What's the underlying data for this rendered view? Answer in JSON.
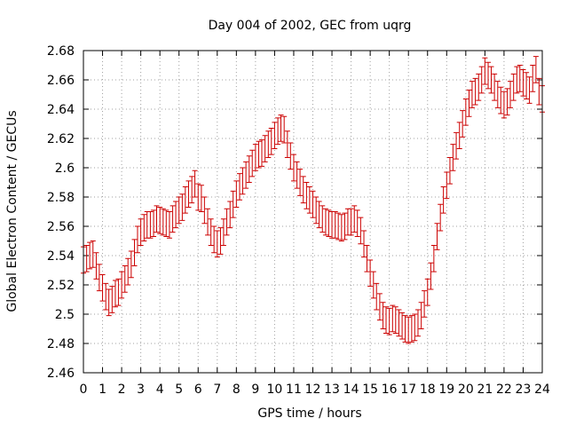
{
  "chart_data": {
    "type": "scatter",
    "title": "Day 004 of 2002, GEC from uqrg",
    "xlabel": "GPS time / hours",
    "ylabel": "Global Electron Content / GECUs",
    "xlim": [
      0,
      24
    ],
    "ylim": [
      2.46,
      2.68
    ],
    "xticks": [
      "0",
      "1",
      "2",
      "3",
      "4",
      "5",
      "6",
      "7",
      "8",
      "9",
      "10",
      "11",
      "12",
      "13",
      "14",
      "15",
      "16",
      "17",
      "18",
      "19",
      "20",
      "21",
      "22",
      "23",
      "24"
    ],
    "yticks": [
      "2.46",
      "2.48",
      "2.5",
      "2.52",
      "2.54",
      "2.56",
      "2.58",
      "2.6",
      "2.62",
      "2.64",
      "2.66",
      "2.68"
    ],
    "grid": true,
    "legend": "none",
    "errorbar_color": "#cc0000",
    "error_halfwidth": 0.009,
    "points": [
      [
        0.0,
        2.537
      ],
      [
        0.17,
        2.538
      ],
      [
        0.33,
        2.54
      ],
      [
        0.5,
        2.541
      ],
      [
        0.67,
        2.533
      ],
      [
        0.83,
        2.525
      ],
      [
        1.0,
        2.518
      ],
      [
        1.17,
        2.512
      ],
      [
        1.33,
        2.508
      ],
      [
        1.5,
        2.51
      ],
      [
        1.67,
        2.514
      ],
      [
        1.83,
        2.515
      ],
      [
        2.0,
        2.52
      ],
      [
        2.17,
        2.524
      ],
      [
        2.33,
        2.529
      ],
      [
        2.5,
        2.534
      ],
      [
        2.67,
        2.542
      ],
      [
        2.83,
        2.551
      ],
      [
        3.0,
        2.556
      ],
      [
        3.17,
        2.559
      ],
      [
        3.33,
        2.561
      ],
      [
        3.5,
        2.561
      ],
      [
        3.67,
        2.562
      ],
      [
        3.83,
        2.565
      ],
      [
        4.0,
        2.564
      ],
      [
        4.17,
        2.563
      ],
      [
        4.33,
        2.562
      ],
      [
        4.5,
        2.561
      ],
      [
        4.67,
        2.565
      ],
      [
        4.83,
        2.568
      ],
      [
        5.0,
        2.571
      ],
      [
        5.17,
        2.573
      ],
      [
        5.33,
        2.578
      ],
      [
        5.5,
        2.582
      ],
      [
        5.67,
        2.585
      ],
      [
        5.83,
        2.589
      ],
      [
        6.0,
        2.58
      ],
      [
        6.17,
        2.579
      ],
      [
        6.33,
        2.571
      ],
      [
        6.5,
        2.563
      ],
      [
        6.67,
        2.556
      ],
      [
        6.83,
        2.551
      ],
      [
        7.0,
        2.548
      ],
      [
        7.17,
        2.55
      ],
      [
        7.33,
        2.556
      ],
      [
        7.5,
        2.563
      ],
      [
        7.67,
        2.568
      ],
      [
        7.83,
        2.575
      ],
      [
        8.0,
        2.582
      ],
      [
        8.17,
        2.587
      ],
      [
        8.33,
        2.591
      ],
      [
        8.5,
        2.595
      ],
      [
        8.67,
        2.599
      ],
      [
        8.83,
        2.603
      ],
      [
        9.0,
        2.607
      ],
      [
        9.17,
        2.609
      ],
      [
        9.33,
        2.61
      ],
      [
        9.5,
        2.613
      ],
      [
        9.67,
        2.616
      ],
      [
        9.83,
        2.618
      ],
      [
        10.0,
        2.622
      ],
      [
        10.17,
        2.625
      ],
      [
        10.33,
        2.627
      ],
      [
        10.5,
        2.626
      ],
      [
        10.67,
        2.616
      ],
      [
        10.83,
        2.608
      ],
      [
        11.0,
        2.6
      ],
      [
        11.17,
        2.595
      ],
      [
        11.33,
        2.59
      ],
      [
        11.5,
        2.585
      ],
      [
        11.67,
        2.581
      ],
      [
        11.83,
        2.578
      ],
      [
        12.0,
        2.575
      ],
      [
        12.17,
        2.571
      ],
      [
        12.33,
        2.568
      ],
      [
        12.5,
        2.565
      ],
      [
        12.67,
        2.563
      ],
      [
        12.83,
        2.562
      ],
      [
        13.0,
        2.561
      ],
      [
        13.17,
        2.561
      ],
      [
        13.33,
        2.56
      ],
      [
        13.5,
        2.559
      ],
      [
        13.67,
        2.56
      ],
      [
        13.83,
        2.563
      ],
      [
        14.0,
        2.563
      ],
      [
        14.17,
        2.565
      ],
      [
        14.33,
        2.562
      ],
      [
        14.5,
        2.557
      ],
      [
        14.67,
        2.548
      ],
      [
        14.83,
        2.538
      ],
      [
        15.0,
        2.528
      ],
      [
        15.17,
        2.52
      ],
      [
        15.33,
        2.512
      ],
      [
        15.5,
        2.505
      ],
      [
        15.67,
        2.499
      ],
      [
        15.83,
        2.496
      ],
      [
        16.0,
        2.495
      ],
      [
        16.17,
        2.497
      ],
      [
        16.33,
        2.496
      ],
      [
        16.5,
        2.494
      ],
      [
        16.67,
        2.492
      ],
      [
        16.83,
        2.49
      ],
      [
        17.0,
        2.489
      ],
      [
        17.17,
        2.49
      ],
      [
        17.33,
        2.491
      ],
      [
        17.5,
        2.494
      ],
      [
        17.67,
        2.499
      ],
      [
        17.83,
        2.507
      ],
      [
        18.0,
        2.515
      ],
      [
        18.17,
        2.526
      ],
      [
        18.33,
        2.538
      ],
      [
        18.5,
        2.553
      ],
      [
        18.67,
        2.566
      ],
      [
        18.83,
        2.578
      ],
      [
        19.0,
        2.588
      ],
      [
        19.17,
        2.598
      ],
      [
        19.33,
        2.607
      ],
      [
        19.5,
        2.615
      ],
      [
        19.67,
        2.622
      ],
      [
        19.83,
        2.63
      ],
      [
        20.0,
        2.638
      ],
      [
        20.17,
        2.644
      ],
      [
        20.33,
        2.65
      ],
      [
        20.5,
        2.652
      ],
      [
        20.67,
        2.655
      ],
      [
        20.83,
        2.66
      ],
      [
        21.0,
        2.666
      ],
      [
        21.17,
        2.663
      ],
      [
        21.33,
        2.66
      ],
      [
        21.5,
        2.655
      ],
      [
        21.67,
        2.65
      ],
      [
        21.83,
        2.646
      ],
      [
        22.0,
        2.643
      ],
      [
        22.17,
        2.645
      ],
      [
        22.33,
        2.65
      ],
      [
        22.5,
        2.655
      ],
      [
        22.67,
        2.66
      ],
      [
        22.83,
        2.661
      ],
      [
        23.0,
        2.658
      ],
      [
        23.17,
        2.656
      ],
      [
        23.33,
        2.653
      ],
      [
        23.5,
        2.661
      ],
      [
        23.67,
        2.667
      ],
      [
        23.83,
        2.652
      ],
      [
        24.0,
        2.647
      ]
    ]
  }
}
